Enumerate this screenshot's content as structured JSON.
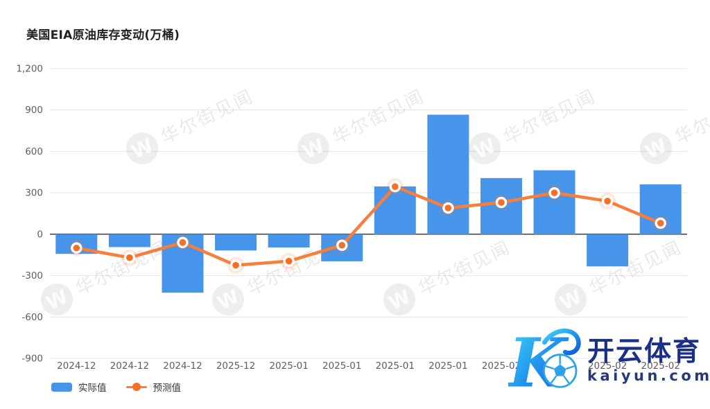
{
  "header": {
    "title": "美国EIA原油库存变动(万桶)"
  },
  "chart_data": {
    "type": "bar+line",
    "title": "美国EIA原油库存变动(万桶)",
    "xlabel": "",
    "ylabel": "",
    "categories": [
      "2024-12",
      "2024-12",
      "2024-12",
      "2025-12",
      "2025-01",
      "2025-01",
      "2025-01",
      "2025-01",
      "2025-02",
      "2025-02",
      "2025-02",
      "2025-02"
    ],
    "series": [
      {
        "name": "实际值",
        "type": "bar",
        "color": "#4795EB",
        "values": [
          -142.5,
          -93.4,
          -423.7,
          -117.8,
          -95.9,
          -196.2,
          346.3,
          866.4,
          407,
          463.3,
          -233.2,
          361.4
        ]
      },
      {
        "name": "预测值",
        "type": "line",
        "color": "#F87F3B",
        "marker_color": "#F76F25",
        "values": [
          -100,
          -170,
          -60,
          -225,
          -195,
          -80,
          345,
          190,
          230,
          300,
          240,
          80
        ]
      }
    ],
    "ylim": [
      -900,
      1200
    ],
    "yticks": [
      1200,
      900,
      600,
      300,
      0,
      -300,
      -600,
      -900
    ],
    "grid": true,
    "legend_position": "bottom-left"
  },
  "legend": {
    "actual": "实际值",
    "forecast": "预测值"
  },
  "watermark": {
    "text": "华尔街见闻",
    "logo_letter": "W"
  },
  "brand": {
    "name": "开云体育",
    "domain": "kaiyun.com",
    "mark": "K"
  }
}
